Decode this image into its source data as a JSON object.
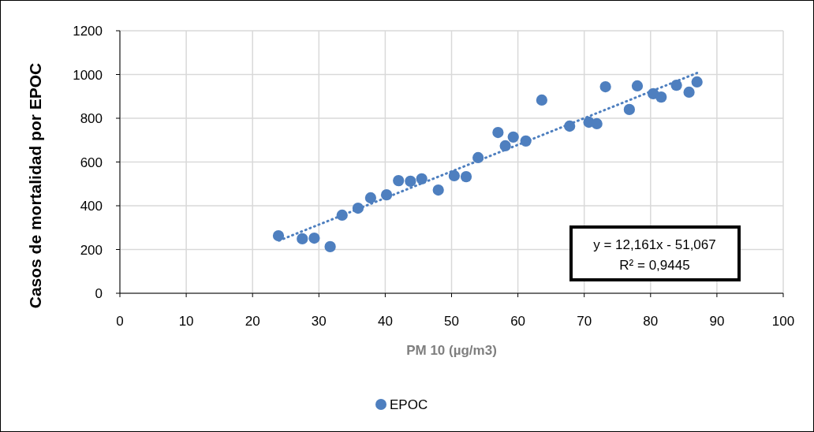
{
  "chart_data": {
    "type": "scatter",
    "xlabel": "PM 10 (µg/m3)",
    "ylabel": "Casos de mortalidad por EPOC",
    "xlim": [
      0,
      100
    ],
    "xticks": [
      0,
      10,
      20,
      30,
      40,
      50,
      60,
      70,
      80,
      90,
      100
    ],
    "ylim": [
      0,
      1200
    ],
    "yticks": [
      0,
      200,
      400,
      600,
      800,
      1000,
      1200
    ],
    "grid": true,
    "legend": "bottom",
    "marker": "circle",
    "series": [
      {
        "name": "EPOC",
        "color": "#4e7fbf",
        "x": [
          23.9,
          27.5,
          29.3,
          31.7,
          33.5,
          35.9,
          37.8,
          40.2,
          42.0,
          43.8,
          45.5,
          48.0,
          50.4,
          52.2,
          54.0,
          57.0,
          58.1,
          59.3,
          61.2,
          63.6,
          67.8,
          70.7,
          71.9,
          73.2,
          76.8,
          78.0,
          80.4,
          81.6,
          83.9,
          85.8,
          87.0
        ],
        "values": [
          263,
          249,
          252,
          213,
          357,
          389,
          436,
          450,
          515,
          512,
          523,
          472,
          537,
          533,
          620,
          735,
          674,
          714,
          696,
          883,
          764,
          782,
          775,
          944,
          840,
          948,
          912,
          897,
          951,
          919,
          966
        ]
      },
      {
        "type": "line",
        "color": "#4e7fbf",
        "line_style": "dotted",
        "marker": "none",
        "x": [
          24,
          87
        ],
        "values": [
          240.8,
          1006.9
        ]
      }
    ],
    "annotations": [
      "y = 12,161x - 51,067",
      "R² = 0,9445"
    ]
  }
}
